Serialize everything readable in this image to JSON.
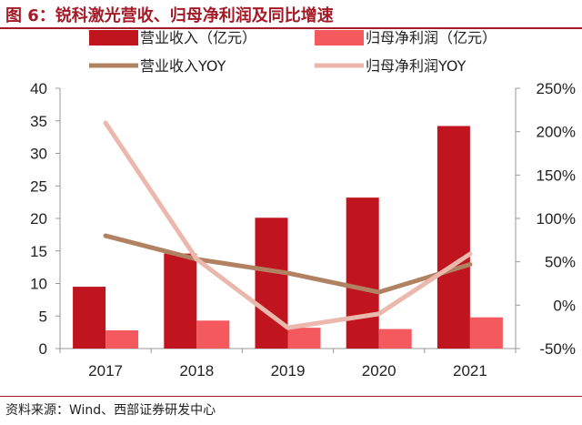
{
  "figure": {
    "title": "图 6：锐科激光营收、归母净利润及同比增速",
    "source": "资料来源：Wind、西部证券研发中心"
  },
  "colors": {
    "accent": "#a31b27",
    "revenue_bar": "#c0141f",
    "profit_bar": "#f4595d",
    "revenue_yoy_line": "#b08262",
    "profit_yoy_line": "#ebb8ad"
  },
  "chart_data": {
    "type": "bar",
    "categories": [
      "2017",
      "2018",
      "2019",
      "2020",
      "2021"
    ],
    "series": [
      {
        "name": "营业收入（亿元）",
        "type": "bar",
        "axis": "left",
        "values": [
          9.5,
          14.6,
          20.1,
          23.2,
          34.2
        ]
      },
      {
        "name": "归母净利润（亿元）",
        "type": "bar",
        "axis": "left",
        "values": [
          2.8,
          4.3,
          3.2,
          3.0,
          4.8
        ]
      },
      {
        "name": "营业收入YOY",
        "type": "line",
        "axis": "right",
        "values": [
          0.8,
          0.53,
          0.37,
          0.15,
          0.47
        ]
      },
      {
        "name": "归母净利润YOY",
        "type": "line",
        "axis": "right",
        "values": [
          2.1,
          0.53,
          -0.26,
          -0.1,
          0.59
        ]
      }
    ],
    "y_left": {
      "min": 0,
      "max": 40,
      "ticks": [
        "0",
        "5",
        "10",
        "15",
        "20",
        "25",
        "30",
        "35",
        "40"
      ],
      "tick_values": [
        0,
        5,
        10,
        15,
        20,
        25,
        30,
        35,
        40
      ]
    },
    "y_right": {
      "min": -0.5,
      "max": 2.5,
      "ticks": [
        "-50%",
        "0%",
        "50%",
        "100%",
        "150%",
        "200%",
        "250%"
      ],
      "tick_values": [
        -0.5,
        0,
        0.5,
        1.0,
        1.5,
        2.0,
        2.5
      ]
    },
    "grid": false,
    "legend_position": "top"
  }
}
